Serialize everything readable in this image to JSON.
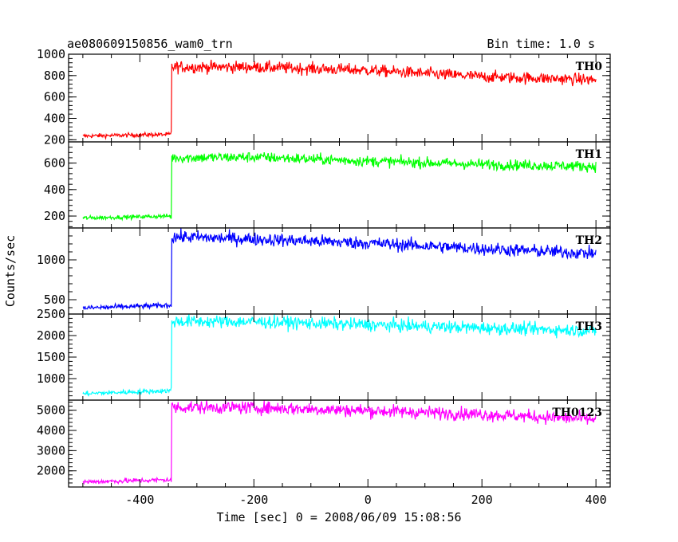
{
  "header": {
    "title": "ae080609150856_wam0_trn",
    "bin_time": "Bin time: 1.0 s"
  },
  "xlabel": "Time [sec] 0 = 2008/06/09 15:08:56",
  "ylabel": "Counts/sec",
  "chart_data": [
    {
      "type": "line",
      "panel": "TH0",
      "color": "#ff0000",
      "xlim": [
        -525,
        425
      ],
      "ylim": [
        180,
        1000
      ],
      "yticks": [
        200,
        400,
        600,
        800,
        1000
      ],
      "trigger_time": -345,
      "series": [
        {
          "name": "TH0",
          "x": [
            -500,
            -345,
            -344,
            -200,
            0,
            200,
            400
          ],
          "values": [
            235,
            250,
            880,
            880,
            850,
            790,
            760
          ]
        }
      ]
    },
    {
      "type": "line",
      "panel": "TH1",
      "color": "#00ff00",
      "xlim": [
        -525,
        425
      ],
      "ylim": [
        110,
        760
      ],
      "yticks": [
        200,
        400,
        600
      ],
      "trigger_time": -345,
      "series": [
        {
          "name": "TH1",
          "x": [
            -500,
            -345,
            -344,
            -200,
            0,
            200,
            400
          ],
          "values": [
            185,
            200,
            640,
            645,
            615,
            590,
            575
          ]
        }
      ]
    },
    {
      "type": "line",
      "panel": "TH2",
      "color": "#0000ff",
      "xlim": [
        -525,
        425
      ],
      "ylim": [
        320,
        1400
      ],
      "yticks": [
        500,
        1000
      ],
      "trigger_time": -345,
      "series": [
        {
          "name": "TH2",
          "x": [
            -500,
            -345,
            -344,
            -200,
            0,
            200,
            400
          ],
          "values": [
            395,
            430,
            1290,
            1260,
            1210,
            1140,
            1080
          ]
        }
      ]
    },
    {
      "type": "line",
      "panel": "TH3",
      "color": "#00ffff",
      "xlim": [
        -525,
        425
      ],
      "ylim": [
        500,
        2500
      ],
      "yticks": [
        1000,
        1500,
        2000,
        2500
      ],
      "trigger_time": -345,
      "series": [
        {
          "name": "TH3",
          "x": [
            -500,
            -345,
            -344,
            -200,
            0,
            200,
            400
          ],
          "values": [
            650,
            720,
            2330,
            2320,
            2250,
            2180,
            2110
          ]
        }
      ]
    },
    {
      "type": "line",
      "panel": "TH0123",
      "color": "#ff00ff",
      "xlim": [
        -525,
        425
      ],
      "ylim": [
        1200,
        5500
      ],
      "yticks": [
        2000,
        3000,
        4000,
        5000
      ],
      "trigger_time": -345,
      "series": [
        {
          "name": "TH0123",
          "x": [
            -500,
            -345,
            -344,
            -200,
            0,
            200,
            400
          ],
          "values": [
            1450,
            1560,
            5150,
            5130,
            4980,
            4800,
            4550
          ]
        }
      ]
    }
  ],
  "xticks": [
    -400,
    -200,
    0,
    200,
    400
  ]
}
